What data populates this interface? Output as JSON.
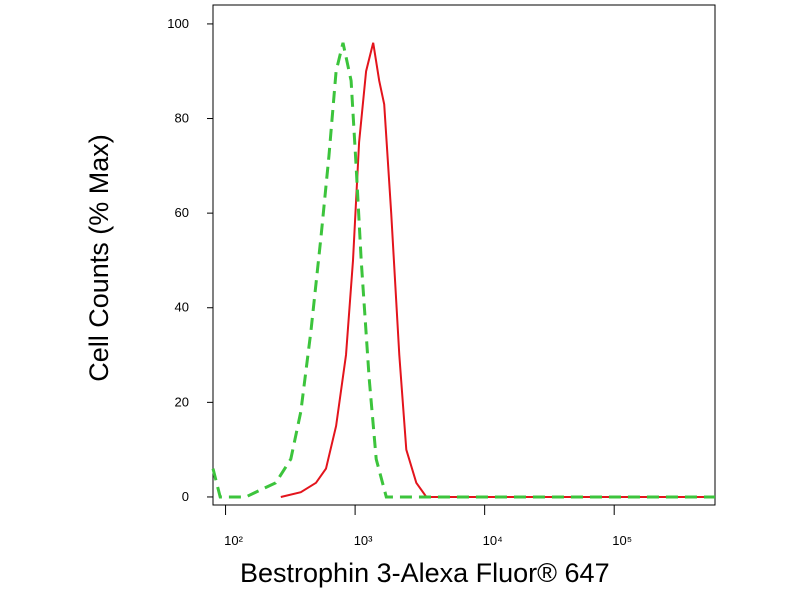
{
  "chart_data": {
    "type": "line",
    "xlabel": "Bestrophin 3-Alexa Fluor® 647",
    "ylabel": "Cell Counts (% Max)",
    "xscale": "log",
    "xlim": [
      80,
      600000
    ],
    "ylim": [
      -1.7,
      104
    ],
    "xticks": [
      {
        "value": 100,
        "label": "10²"
      },
      {
        "value": 1000,
        "label": "10³"
      },
      {
        "value": 10000,
        "label": "10⁴"
      },
      {
        "value": 100000,
        "label": "10⁵"
      }
    ],
    "yticks": [
      0,
      20,
      40,
      60,
      80,
      100
    ],
    "series": [
      {
        "color": "#e3141c",
        "dash": false,
        "x": [
          267,
          381,
          499,
          596,
          713,
          851,
          964,
          1074,
          1217,
          1379,
          1535,
          1678,
          1901,
          2193,
          2484,
          2970,
          3550,
          600000
        ],
        "values": [
          0,
          1,
          3,
          6,
          15,
          30,
          50,
          75,
          90,
          96,
          88,
          83,
          60,
          30,
          10,
          3,
          0,
          0
        ]
      },
      {
        "color": "#3cc43c",
        "dash": true,
        "x": [
          80,
          91,
          143,
          204,
          244,
          319,
          381,
          456,
          545,
          628,
          713,
          807,
          931,
          1018,
          1114,
          1285,
          1456,
          1740,
          600000
        ],
        "values": [
          6,
          0,
          0,
          2,
          3,
          8,
          18,
          35,
          55,
          72,
          90,
          96,
          88,
          70,
          50,
          25,
          8,
          0,
          0
        ]
      }
    ]
  }
}
